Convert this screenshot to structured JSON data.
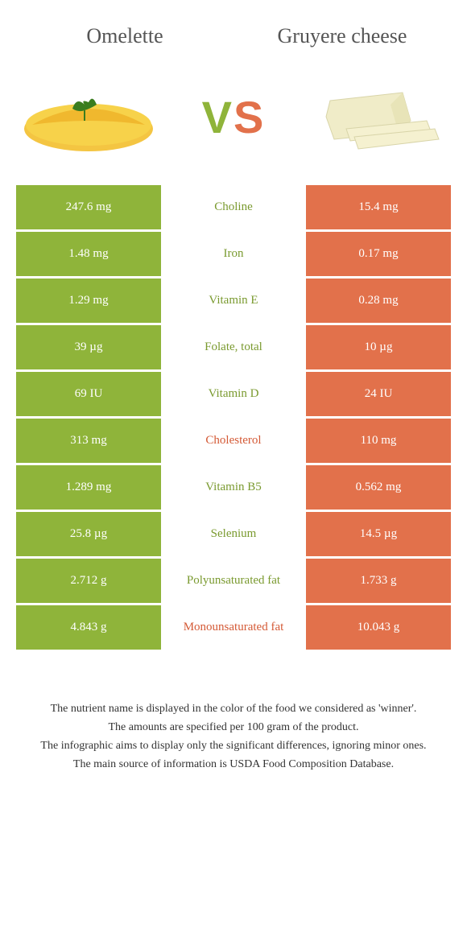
{
  "food_left": {
    "name": "Omelette"
  },
  "food_right": {
    "name": "Gruyere cheese"
  },
  "colors": {
    "left": "#8fb43a",
    "right": "#e2714b",
    "left_text": "#7a9a2f",
    "right_text": "#d45a36"
  },
  "vs": {
    "v": "V",
    "s": "S"
  },
  "rows": [
    {
      "nutrient": "Choline",
      "left": "247.6 mg",
      "right": "15.4 mg",
      "winner": "left"
    },
    {
      "nutrient": "Iron",
      "left": "1.48 mg",
      "right": "0.17 mg",
      "winner": "left"
    },
    {
      "nutrient": "Vitamin E",
      "left": "1.29 mg",
      "right": "0.28 mg",
      "winner": "left"
    },
    {
      "nutrient": "Folate, total",
      "left": "39 µg",
      "right": "10 µg",
      "winner": "left"
    },
    {
      "nutrient": "Vitamin D",
      "left": "69 IU",
      "right": "24 IU",
      "winner": "left"
    },
    {
      "nutrient": "Cholesterol",
      "left": "313 mg",
      "right": "110 mg",
      "winner": "right"
    },
    {
      "nutrient": "Vitamin B5",
      "left": "1.289 mg",
      "right": "0.562 mg",
      "winner": "left"
    },
    {
      "nutrient": "Selenium",
      "left": "25.8 µg",
      "right": "14.5 µg",
      "winner": "left"
    },
    {
      "nutrient": "Polyunsaturated fat",
      "left": "2.712 g",
      "right": "1.733 g",
      "winner": "left"
    },
    {
      "nutrient": "Monounsaturated fat",
      "left": "4.843 g",
      "right": "10.043 g",
      "winner": "right"
    }
  ],
  "footer": {
    "line1": "The nutrient name is displayed in the color of the food we considered as 'winner'.",
    "line2": "The amounts are specified per 100 gram of the product.",
    "line3": "The infographic aims to display only the significant differences, ignoring minor ones.",
    "line4": "The main source of information is USDA Food Composition Database."
  }
}
